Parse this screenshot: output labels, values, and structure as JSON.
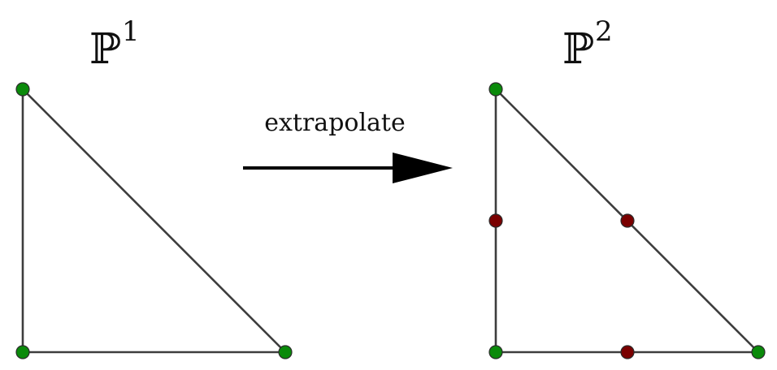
{
  "left_panel": {
    "title_base": "ℙ",
    "title_sup": "1",
    "vertex_color": "#0a8a0a"
  },
  "right_panel": {
    "title_base": "ℙ",
    "title_sup": "2",
    "vertex_color": "#0a8a0a",
    "midpoint_color": "#7a0000"
  },
  "arrow": {
    "label": "extrapolate"
  },
  "colors": {
    "edge": "#3d3d3d",
    "arrow": "#000000"
  }
}
